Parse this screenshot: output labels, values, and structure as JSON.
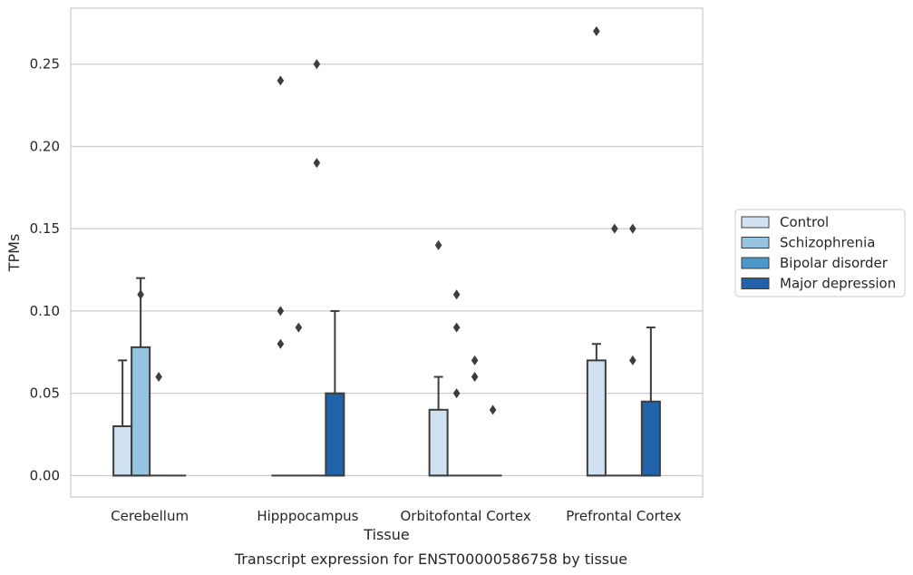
{
  "chart_data": {
    "type": "box",
    "xlabel": "Tissue",
    "ylabel": "TPMs",
    "caption": "Transcript expression for ENST00000586758 by tissue",
    "ylim": [
      -0.013,
      0.284
    ],
    "yticks": [
      0.0,
      0.05,
      0.1,
      0.15,
      0.2,
      0.25
    ],
    "ytick_labels": [
      "0.00",
      "0.05",
      "0.10",
      "0.15",
      "0.20",
      "0.25"
    ],
    "grid": "horizontal",
    "legend_position": "right",
    "categories": [
      "Cerebellum",
      "Hipppocampus",
      "Orbitofontal Cortex",
      "Prefrontal Cortex"
    ],
    "series": [
      {
        "name": "Control",
        "color": "#d0e1f2",
        "boxes": [
          {
            "q1": 0.0,
            "median": 0.0,
            "q3": 0.03,
            "whisker_low": 0.0,
            "whisker_high": 0.07,
            "outliers": []
          },
          {
            "q1": 0.0,
            "median": 0.0,
            "q3": 0.0,
            "whisker_low": 0.0,
            "whisker_high": 0.0,
            "outliers": [
              0.24,
              0.1,
              0.08
            ]
          },
          {
            "q1": 0.0,
            "median": 0.0,
            "q3": 0.04,
            "whisker_low": 0.0,
            "whisker_high": 0.06,
            "outliers": [
              0.14
            ]
          },
          {
            "q1": 0.0,
            "median": 0.0,
            "q3": 0.07,
            "whisker_low": 0.0,
            "whisker_high": 0.08,
            "outliers": [
              0.27
            ]
          }
        ]
      },
      {
        "name": "Schizophrenia",
        "color": "#94c4df",
        "boxes": [
          {
            "q1": 0.0,
            "median": 0.0,
            "q3": 0.078,
            "whisker_low": 0.0,
            "whisker_high": 0.12,
            "outliers": [
              0.11
            ]
          },
          {
            "q1": 0.0,
            "median": 0.0,
            "q3": 0.0,
            "whisker_low": 0.0,
            "whisker_high": 0.0,
            "outliers": [
              0.09
            ]
          },
          {
            "q1": 0.0,
            "median": 0.0,
            "q3": 0.0,
            "whisker_low": 0.0,
            "whisker_high": 0.0,
            "outliers": [
              0.11,
              0.09,
              0.05
            ]
          },
          {
            "q1": 0.0,
            "median": 0.0,
            "q3": 0.0,
            "whisker_low": 0.0,
            "whisker_high": 0.0,
            "outliers": [
              0.15
            ]
          }
        ]
      },
      {
        "name": "Bipolar disorder",
        "color": "#4a98c9",
        "boxes": [
          {
            "q1": 0.0,
            "median": 0.0,
            "q3": 0.0,
            "whisker_low": 0.0,
            "whisker_high": 0.0,
            "outliers": [
              0.06
            ]
          },
          {
            "q1": 0.0,
            "median": 0.0,
            "q3": 0.0,
            "whisker_low": 0.0,
            "whisker_high": 0.0,
            "outliers": [
              0.25,
              0.19
            ]
          },
          {
            "q1": 0.0,
            "median": 0.0,
            "q3": 0.0,
            "whisker_low": 0.0,
            "whisker_high": 0.0,
            "outliers": [
              0.07,
              0.06
            ]
          },
          {
            "q1": 0.0,
            "median": 0.0,
            "q3": 0.0,
            "whisker_low": 0.0,
            "whisker_high": 0.0,
            "outliers": [
              0.15,
              0.07
            ]
          }
        ]
      },
      {
        "name": "Major depression",
        "color": "#2163aa",
        "boxes": [
          {
            "q1": 0.0,
            "median": 0.0,
            "q3": 0.0,
            "whisker_low": 0.0,
            "whisker_high": 0.0,
            "outliers": []
          },
          {
            "q1": 0.0,
            "median": 0.0,
            "q3": 0.05,
            "whisker_low": 0.0,
            "whisker_high": 0.1,
            "outliers": []
          },
          {
            "q1": 0.0,
            "median": 0.0,
            "q3": 0.0,
            "whisker_low": 0.0,
            "whisker_high": 0.0,
            "outliers": [
              0.04
            ]
          },
          {
            "q1": 0.0,
            "median": 0.0,
            "q3": 0.045,
            "whisker_low": 0.0,
            "whisker_high": 0.09,
            "outliers": []
          }
        ]
      }
    ]
  }
}
